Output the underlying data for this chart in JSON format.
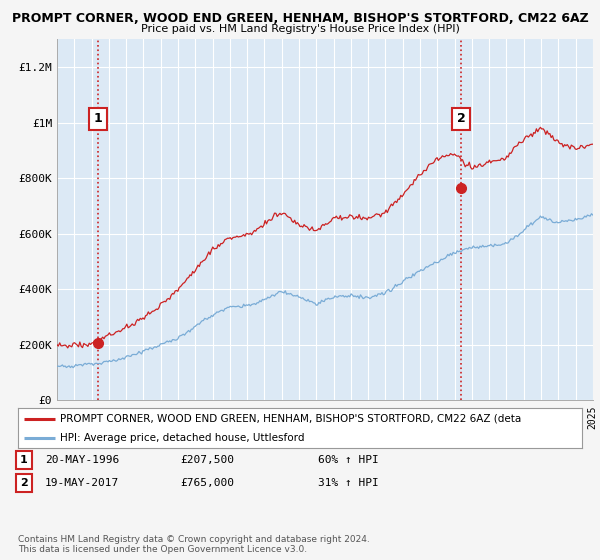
{
  "title1": "PROMPT CORNER, WOOD END GREEN, HENHAM, BISHOP'S STORTFORD, CM22 6AZ",
  "title2": "Price paid vs. HM Land Registry's House Price Index (HPI)",
  "bg_color": "#f5f5f5",
  "plot_bg_color": "#dce9f5",
  "red_color": "#cc2222",
  "blue_color": "#7aacd6",
  "ylim": [
    0,
    1300000
  ],
  "yticks": [
    0,
    200000,
    400000,
    600000,
    800000,
    1000000,
    1200000
  ],
  "ytick_labels": [
    "£0",
    "£200K",
    "£400K",
    "£600K",
    "£800K",
    "£1M",
    "£1.2M"
  ],
  "point1_year": 1996.38,
  "point1_price": 207500,
  "point2_year": 2017.38,
  "point2_price": 765000,
  "vline1_year": 1996.38,
  "vline2_year": 2017.38,
  "legend_line1": "PROMPT CORNER, WOOD END GREEN, HENHAM, BISHOP'S STORTFORD, CM22 6AZ (deta",
  "legend_line2": "HPI: Average price, detached house, Uttlesford",
  "footnote": "Contains HM Land Registry data © Crown copyright and database right 2024.\nThis data is licensed under the Open Government Licence v3.0.",
  "xstart": 1994,
  "xend": 2025,
  "note1_date": "20-MAY-1996",
  "note1_price": "£207,500",
  "note1_hpi": "60% ↑ HPI",
  "note2_date": "19-MAY-2017",
  "note2_price": "£765,000",
  "note2_hpi": "31% ↑ HPI"
}
